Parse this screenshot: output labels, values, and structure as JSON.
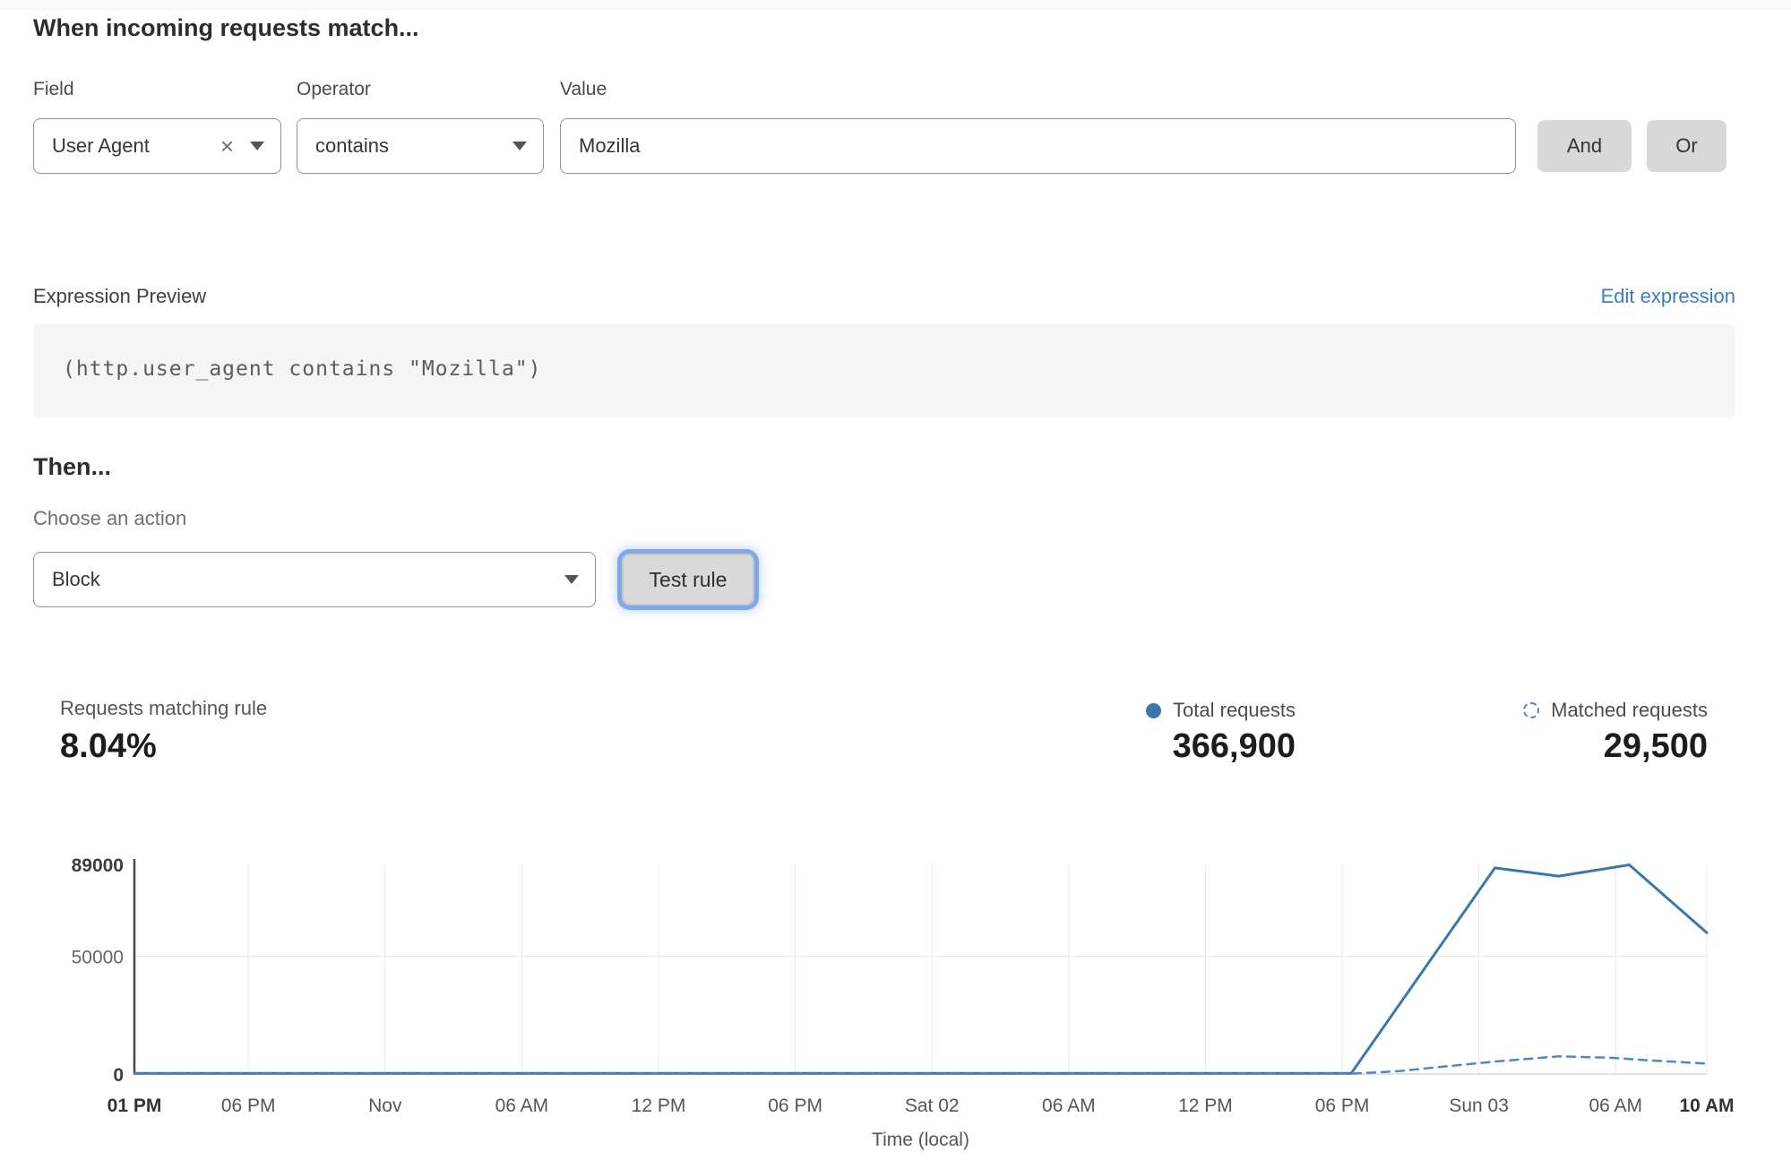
{
  "rule_builder": {
    "heading": "When incoming requests match...",
    "field": {
      "label": "Field",
      "value": "User Agent",
      "clear_icon": "x-remove"
    },
    "operator": {
      "label": "Operator",
      "value": "contains"
    },
    "value": {
      "label": "Value",
      "value": "Mozilla"
    },
    "and_label": "And",
    "or_label": "Or"
  },
  "expression": {
    "label": "Expression Preview",
    "edit_link": "Edit expression",
    "code": "(http.user_agent contains \"Mozilla\")"
  },
  "then_section": {
    "heading": "Then...",
    "action_label": "Choose an action",
    "action_value": "Block",
    "test_button": "Test rule"
  },
  "stats": {
    "matching": {
      "label": "Requests matching rule",
      "value": "8.04%"
    },
    "total": {
      "label": "Total requests",
      "value": "366,900"
    },
    "matched": {
      "label": "Matched requests",
      "value": "29,500"
    }
  },
  "colors": {
    "line_blue": "#3a77ab",
    "dashed_blue": "#4e88c0",
    "link_blue": "#3b7dbd",
    "focus_ring": "#7fa8e8",
    "button_gray": "#d8d8d8",
    "code_bg": "#f5f5f5"
  },
  "chart_data": {
    "type": "line",
    "xlabel": "Time (local)",
    "ylabel": "",
    "ylim": [
      0,
      89000
    ],
    "x_range": [
      0,
      69
    ],
    "x_unit_note": "hours from first tick (01 PM) to last tick (10 AM)",
    "grid": true,
    "legend_position": "top-right (above chart with stat values)",
    "y_ticks": [
      {
        "value": 0,
        "label": "0",
        "bold": true
      },
      {
        "value": 50000,
        "label": "50000",
        "bold": false
      },
      {
        "value": 89000,
        "label": "89000",
        "bold": true
      }
    ],
    "x_ticks": [
      {
        "h": 0,
        "label": "01 PM",
        "bold": true
      },
      {
        "h": 5,
        "label": "06 PM",
        "bold": false
      },
      {
        "h": 11,
        "label": "Nov",
        "bold": false
      },
      {
        "h": 17,
        "label": "06 AM",
        "bold": false
      },
      {
        "h": 23,
        "label": "12 PM",
        "bold": false
      },
      {
        "h": 29,
        "label": "06 PM",
        "bold": false
      },
      {
        "h": 35,
        "label": "Sat 02",
        "bold": false
      },
      {
        "h": 41,
        "label": "06 AM",
        "bold": false
      },
      {
        "h": 47,
        "label": "12 PM",
        "bold": false
      },
      {
        "h": 53,
        "label": "06 PM",
        "bold": false
      },
      {
        "h": 59,
        "label": "Sun 03",
        "bold": false
      },
      {
        "h": 65,
        "label": "06 AM",
        "bold": false
      },
      {
        "h": 69,
        "label": "10 AM",
        "bold": true
      }
    ],
    "series": [
      {
        "name": "Total requests",
        "style": "solid",
        "color": "#3a77ab",
        "points": [
          [
            0,
            300
          ],
          [
            5,
            300
          ],
          [
            11,
            300
          ],
          [
            17,
            300
          ],
          [
            23,
            300
          ],
          [
            29,
            300
          ],
          [
            35,
            300
          ],
          [
            41,
            300
          ],
          [
            47,
            300
          ],
          [
            53.4,
            300
          ],
          [
            59.7,
            87500
          ],
          [
            62.5,
            84000
          ],
          [
            65.6,
            88800
          ],
          [
            69,
            60000
          ]
        ]
      },
      {
        "name": "Matched requests",
        "style": "dashed",
        "color": "#4e88c0",
        "points": [
          [
            0,
            100
          ],
          [
            5,
            100
          ],
          [
            11,
            100
          ],
          [
            17,
            100
          ],
          [
            23,
            100
          ],
          [
            29,
            100
          ],
          [
            35,
            100
          ],
          [
            41,
            100
          ],
          [
            47,
            100
          ],
          [
            53.5,
            200
          ],
          [
            55.5,
            1200
          ],
          [
            57.5,
            3200
          ],
          [
            59.7,
            5300
          ],
          [
            62.5,
            7500
          ],
          [
            64.8,
            6900
          ],
          [
            66.5,
            5800
          ],
          [
            69,
            4400
          ]
        ]
      }
    ]
  }
}
